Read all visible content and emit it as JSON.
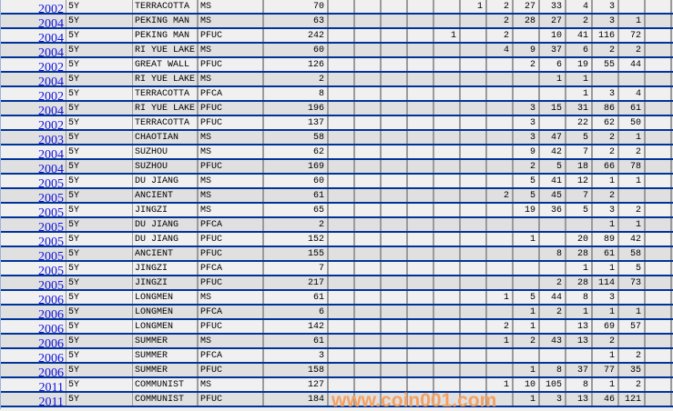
{
  "table": {
    "rows": [
      {
        "year": "2002",
        "term": "5Y",
        "site": "TERRACOTTA",
        "type": "MS",
        "total": "70",
        "counts": [
          "",
          "",
          "",
          "",
          "",
          "1",
          "2",
          "27",
          "33",
          "4",
          "3",
          "",
          ""
        ]
      },
      {
        "year": "2004",
        "term": "5Y",
        "site": "PEKING MAN",
        "type": "MS",
        "total": "63",
        "counts": [
          "",
          "",
          "",
          "",
          "",
          "",
          "2",
          "28",
          "27",
          "2",
          "3",
          "1",
          ""
        ]
      },
      {
        "year": "2004",
        "term": "5Y",
        "site": "PEKING MAN",
        "type": "PFUC",
        "total": "242",
        "counts": [
          "",
          "",
          "",
          "",
          "1",
          "",
          "2",
          "",
          "10",
          "41",
          "116",
          "72",
          ""
        ]
      },
      {
        "year": "2004",
        "term": "5Y",
        "site": "RI YUE LAKE",
        "type": "MS",
        "total": "60",
        "counts": [
          "",
          "",
          "",
          "",
          "",
          "",
          "4",
          "9",
          "37",
          "6",
          "2",
          "2",
          ""
        ]
      },
      {
        "year": "2002",
        "term": "5Y",
        "site": "GREAT WALL",
        "type": "PFUC",
        "total": "126",
        "counts": [
          "",
          "",
          "",
          "",
          "",
          "",
          "",
          "2",
          "6",
          "19",
          "55",
          "44",
          ""
        ]
      },
      {
        "year": "2004",
        "term": "5Y",
        "site": "RI YUE LAKE",
        "type": "MS",
        "total": "2",
        "counts": [
          "",
          "",
          "",
          "",
          "",
          "",
          "",
          "",
          "1",
          "1",
          "",
          "",
          ""
        ]
      },
      {
        "year": "2002",
        "term": "5Y",
        "site": "TERRACOTTA",
        "type": "PFCA",
        "total": "8",
        "counts": [
          "",
          "",
          "",
          "",
          "",
          "",
          "",
          "",
          "",
          "1",
          "3",
          "4",
          ""
        ]
      },
      {
        "year": "2004",
        "term": "5Y",
        "site": "RI YUE LAKE",
        "type": "PFUC",
        "total": "196",
        "counts": [
          "",
          "",
          "",
          "",
          "",
          "",
          "",
          "3",
          "15",
          "31",
          "86",
          "61",
          ""
        ]
      },
      {
        "year": "2002",
        "term": "5Y",
        "site": "TERRACOTTA",
        "type": "PFUC",
        "total": "137",
        "counts": [
          "",
          "",
          "",
          "",
          "",
          "",
          "",
          "3",
          "",
          "22",
          "62",
          "50",
          ""
        ]
      },
      {
        "year": "2003",
        "term": "5Y",
        "site": "CHAOTIAN",
        "type": "MS",
        "total": "58",
        "counts": [
          "",
          "",
          "",
          "",
          "",
          "",
          "",
          "3",
          "47",
          "5",
          "2",
          "1",
          ""
        ]
      },
      {
        "year": "2004",
        "term": "5Y",
        "site": "SUZHOU",
        "type": "MS",
        "total": "62",
        "counts": [
          "",
          "",
          "",
          "",
          "",
          "",
          "",
          "9",
          "42",
          "7",
          "2",
          "2",
          ""
        ]
      },
      {
        "year": "2004",
        "term": "5Y",
        "site": "SUZHOU",
        "type": "PFUC",
        "total": "169",
        "counts": [
          "",
          "",
          "",
          "",
          "",
          "",
          "",
          "2",
          "5",
          "18",
          "66",
          "78",
          ""
        ]
      },
      {
        "year": "2005",
        "term": "5Y",
        "site": "DU JIANG",
        "type": "MS",
        "total": "60",
        "counts": [
          "",
          "",
          "",
          "",
          "",
          "",
          "",
          "5",
          "41",
          "12",
          "1",
          "1",
          ""
        ]
      },
      {
        "year": "2005",
        "term": "5Y",
        "site": "ANCIENT",
        "type": "MS",
        "total": "61",
        "counts": [
          "",
          "",
          "",
          "",
          "",
          "",
          "2",
          "5",
          "45",
          "7",
          "2",
          "",
          ""
        ]
      },
      {
        "year": "2005",
        "term": "5Y",
        "site": "JINGZI",
        "type": "MS",
        "total": "65",
        "counts": [
          "",
          "",
          "",
          "",
          "",
          "",
          "",
          "19",
          "36",
          "5",
          "3",
          "2",
          ""
        ]
      },
      {
        "year": "2005",
        "term": "5Y",
        "site": "DU JIANG",
        "type": "PFCA",
        "total": "2",
        "counts": [
          "",
          "",
          "",
          "",
          "",
          "",
          "",
          "",
          "",
          "",
          "1",
          "1",
          ""
        ]
      },
      {
        "year": "2005",
        "term": "5Y",
        "site": "DU JIANG",
        "type": "PFUC",
        "total": "152",
        "counts": [
          "",
          "",
          "",
          "",
          "",
          "",
          "",
          "1",
          "",
          "20",
          "89",
          "42",
          ""
        ]
      },
      {
        "year": "2005",
        "term": "5Y",
        "site": "ANCIENT",
        "type": "PFUC",
        "total": "155",
        "counts": [
          "",
          "",
          "",
          "",
          "",
          "",
          "",
          "",
          "8",
          "28",
          "61",
          "58",
          ""
        ]
      },
      {
        "year": "2005",
        "term": "5Y",
        "site": "JINGZI",
        "type": "PFCA",
        "total": "7",
        "counts": [
          "",
          "",
          "",
          "",
          "",
          "",
          "",
          "",
          "",
          "1",
          "1",
          "5",
          ""
        ]
      },
      {
        "year": "2005",
        "term": "5Y",
        "site": "JINGZI",
        "type": "PFUC",
        "total": "217",
        "counts": [
          "",
          "",
          "",
          "",
          "",
          "",
          "",
          "",
          "2",
          "28",
          "114",
          "73",
          ""
        ]
      },
      {
        "year": "2006",
        "term": "5Y",
        "site": "LONGMEN",
        "type": "MS",
        "total": "61",
        "counts": [
          "",
          "",
          "",
          "",
          "",
          "",
          "1",
          "5",
          "44",
          "8",
          "3",
          "",
          ""
        ]
      },
      {
        "year": "2006",
        "term": "5Y",
        "site": "LONGMEN",
        "type": "PFCA",
        "total": "6",
        "counts": [
          "",
          "",
          "",
          "",
          "",
          "",
          "",
          "1",
          "2",
          "1",
          "1",
          "1",
          ""
        ]
      },
      {
        "year": "2006",
        "term": "5Y",
        "site": "LONGMEN",
        "type": "PFUC",
        "total": "142",
        "counts": [
          "",
          "",
          "",
          "",
          "",
          "",
          "2",
          "1",
          "",
          "13",
          "69",
          "57",
          ""
        ]
      },
      {
        "year": "2006",
        "term": "5Y",
        "site": "SUMMER",
        "type": "MS",
        "total": "61",
        "counts": [
          "",
          "",
          "",
          "",
          "",
          "",
          "1",
          "2",
          "43",
          "13",
          "2",
          "",
          ""
        ]
      },
      {
        "year": "2006",
        "term": "5Y",
        "site": "SUMMER",
        "type": "PFCA",
        "total": "3",
        "counts": [
          "",
          "",
          "",
          "",
          "",
          "",
          "",
          "",
          "",
          "",
          "1",
          "2",
          ""
        ]
      },
      {
        "year": "2006",
        "term": "5Y",
        "site": "SUMMER",
        "type": "PFUC",
        "total": "158",
        "counts": [
          "",
          "",
          "",
          "",
          "",
          "",
          "",
          "1",
          "8",
          "37",
          "77",
          "35",
          ""
        ]
      },
      {
        "year": "2011",
        "term": "5Y",
        "site": "COMMUNIST",
        "type": "MS",
        "total": "127",
        "counts": [
          "",
          "",
          "",
          "",
          "",
          "",
          "1",
          "10",
          "105",
          "8",
          "1",
          "2",
          ""
        ]
      },
      {
        "year": "2011",
        "term": "5Y",
        "site": "COMMUNIST",
        "type": "PFUC",
        "total": "184",
        "counts": [
          "",
          "",
          "",
          "",
          "",
          "",
          "",
          "1",
          "3",
          "13",
          "46",
          "121",
          ""
        ]
      }
    ]
  },
  "watermark": "www.coin001.com",
  "colors": {
    "year_link": "#1010e0",
    "row_divider": "#003399",
    "row_odd": "#f0f0f0",
    "row_even": "#e0e0e0",
    "watermark": "#f5963c"
  }
}
